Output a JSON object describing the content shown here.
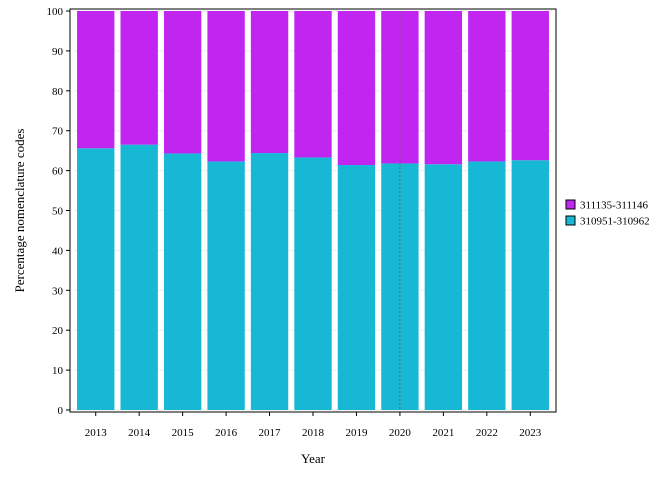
{
  "chart_data": {
    "type": "bar",
    "stacked": true,
    "categories": [
      "2013",
      "2014",
      "2015",
      "2016",
      "2017",
      "2018",
      "2019",
      "2020",
      "2021",
      "2022",
      "2023"
    ],
    "series": [
      {
        "name": "310951-310962",
        "color": "#17b8d6",
        "values": [
          65.6,
          66.5,
          64.3,
          62.3,
          64.4,
          63.3,
          61.4,
          61.8,
          61.6,
          62.3,
          62.6
        ]
      },
      {
        "name": "311135-311146",
        "color": "#c026f0",
        "values": [
          34.4,
          33.5,
          35.7,
          37.7,
          35.6,
          36.7,
          38.6,
          38.2,
          38.4,
          37.7,
          37.4
        ]
      }
    ],
    "xlabel": "Year",
    "ylabel": "Percentage nomenclature codes",
    "ylim": [
      0,
      100
    ],
    "yticks": [
      0,
      10,
      20,
      30,
      40,
      50,
      60,
      70,
      80,
      90,
      100
    ],
    "legend_position": "right",
    "legend_order": [
      "311135-311146",
      "310951-310962"
    ],
    "grid": true,
    "reference_line_at": "2020"
  }
}
